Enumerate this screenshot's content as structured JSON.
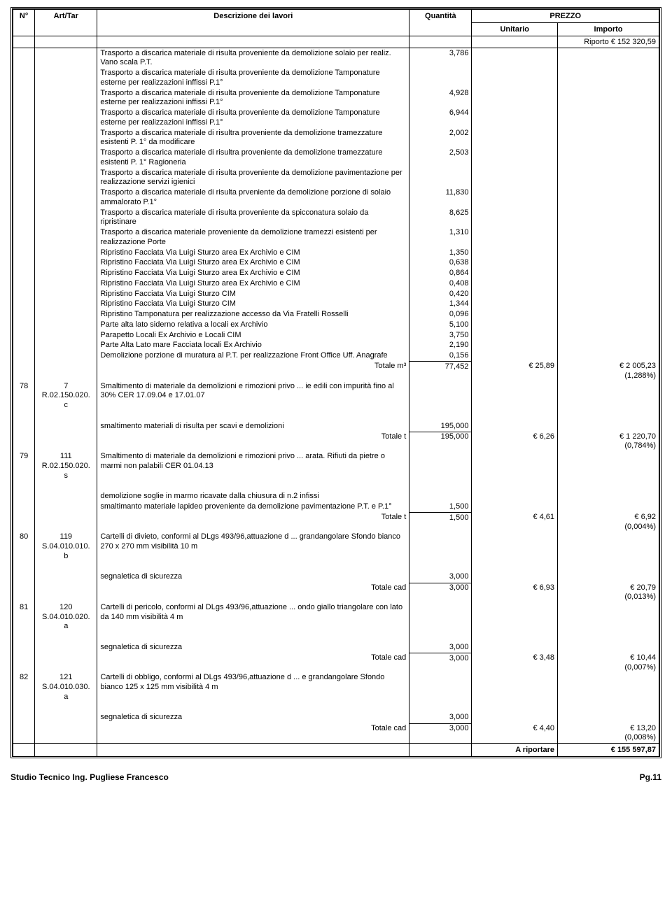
{
  "headers": {
    "n": "N°",
    "art": "Art/Tar",
    "desc": "Descrizione dei lavori",
    "qty": "Quantità",
    "prezzo": "PREZZO",
    "unit": "Unitario",
    "imp": "Importo"
  },
  "riporto": {
    "label": "Riporto",
    "value": "€ 152 320,59"
  },
  "rows": [
    {
      "desc": "Trasporto a discarica materiale di risulta proveniente da demolizione solaio per realiz. Vano scala P.T.",
      "qty": "3,786"
    },
    {
      "desc": "Trasporto a discarica materiale di risulta proveniente da demolizione Tamponature esterne per realizzazioni inffissi P.1°"
    },
    {
      "desc": "Trasporto a discarica materiale di risulta proveniente da demolizione Tamponature esterne per realizzazioni inffissi P.1°",
      "qty": "4,928"
    },
    {
      "desc": "Trasporto a discarica materiale di risulta proveniente da demolizione Tamponature esterne per realizzazioni inffissi P.1°",
      "qty": "6,944"
    },
    {
      "desc": "Trasporto a discarica materiale di risultra proveniente da demolizione tramezzature esistenti P. 1° da modificare",
      "qty": "2,002"
    },
    {
      "desc": "Trasporto a discarica materiale di risultra proveniente da demolizione tramezzature esistenti P. 1° Ragioneria",
      "qty": "2,503"
    },
    {
      "desc": "Trasporto a discarica materiale di risulta proveniente da demolizione pavimentazione per realizzazione servizi igienici"
    },
    {
      "desc": "Trasporto a discarica materiale di risulta prveniente da demolizione porzione di solaio ammalorato P.1°",
      "qty": "11,830"
    },
    {
      "desc": "Trasporto a discarica materiale di risulta proveniente da spicconatura solaio da ripristinare",
      "qty": "8,625"
    },
    {
      "desc": "Trasporto a discarica materiale proveniente da demolizione tramezzi esistenti per realizzazione Porte",
      "qty": "1,310"
    },
    {
      "desc": "Ripristino Facciata Via Luigi Sturzo area Ex Archivio e CIM",
      "qty": "1,350"
    },
    {
      "desc": "Ripristino Facciata Via Luigi Sturzo area Ex Archivio e CIM",
      "qty": "0,638"
    },
    {
      "desc": "Ripristino Facciata Via Luigi Sturzo area Ex Archivio e CIM",
      "qty": "0,864"
    },
    {
      "desc": "Ripristino Facciata Via Luigi Sturzo area Ex Archivio e CIM",
      "qty": "0,408"
    },
    {
      "desc": "Ripristino Facciata Via Luigi Sturzo CIM",
      "qty": "0,420"
    },
    {
      "desc": "Ripristino Facciata Via Luigi Sturzo CIM",
      "qty": "1,344"
    },
    {
      "desc": "Ripristino Tamponatura per realizzazione accesso da Via Fratelli Rosselli",
      "qty": "0,096"
    },
    {
      "desc": "Parte alta lato siderno relativa a locali ex Archivio",
      "qty": "5,100"
    },
    {
      "desc": "Parapetto Locali Ex Archivio e Locali CIM",
      "qty": "3,750"
    },
    {
      "desc": "Parte Alta Lato mare Facciata locali Ex Archivio",
      "qty": "2,190"
    },
    {
      "desc": "Demolizione porzione di muratura al P.T. per realizzazione Front Office Uff. Anagrafe",
      "qty": "0,156"
    }
  ],
  "totale_m3": {
    "label": "Totale m³",
    "qty": "77,452",
    "unit": "€ 25,89",
    "imp": "€ 2 005,23",
    "pct": "(1,288%)"
  },
  "items": [
    {
      "n": "78",
      "art_top": "7",
      "art_code": "R.02.150.020.",
      "art_suf": "c",
      "title": "Smaltimento di materiale da demolizioni e rimozioni privo ... ie edili con impurità  fino al 30% CER 17.09.04 e 17.01.07",
      "lines": [
        {
          "desc": "smaltimento materiali di risulta per scavi e demolizioni",
          "qty": "195,000"
        }
      ],
      "totale": {
        "label": "Totale t",
        "qty": "195,000",
        "unit": "€ 6,26",
        "imp": "€ 1 220,70",
        "pct": "(0,784%)"
      }
    },
    {
      "n": "79",
      "art_top": "111",
      "art_code": "R.02.150.020.",
      "art_suf": "s",
      "title": "Smaltimento di materiale da demolizioni e rimozioni privo ... arata. Rifiuti da pietre o marmi non palabili CER 01.04.13",
      "lines": [
        {
          "desc": "demolizione soglie in marmo ricavate dalla chiusura di n.2 infissi"
        },
        {
          "desc": "smaltimanto materiale lapideo proveniente da demolizione pavimentazione P.T. e P.1°",
          "qty": "1,500"
        }
      ],
      "totale": {
        "label": "Totale t",
        "qty": "1,500",
        "unit": "€ 4,61",
        "imp": "€ 6,92",
        "pct": "(0,004%)"
      }
    },
    {
      "n": "80",
      "art_top": "119",
      "art_code": "S.04.010.010.",
      "art_suf": "b",
      "title": "Cartelli di divieto, conformi al DLgs 493/96,attuazione d ... grandangolare Sfondo bianco 270 x 270 mm visibilità  10 m",
      "lines": [
        {
          "desc": "segnaletica di sicurezza",
          "qty": "3,000"
        }
      ],
      "totale": {
        "label": "Totale cad",
        "qty": "3,000",
        "unit": "€ 6,93",
        "imp": "€ 20,79",
        "pct": "(0,013%)"
      }
    },
    {
      "n": "81",
      "art_top": "120",
      "art_code": "S.04.010.020.",
      "art_suf": "a",
      "title": "Cartelli di pericolo, conformi al DLgs 493/96,attuazione  ... ondo giallo triangolare con lato da 140 mm visibilità  4 m",
      "lines": [
        {
          "desc": "segnaletica di sicurezza",
          "qty": "3,000"
        }
      ],
      "totale": {
        "label": "Totale cad",
        "qty": "3,000",
        "unit": "€ 3,48",
        "imp": "€ 10,44",
        "pct": "(0,007%)"
      }
    },
    {
      "n": "82",
      "art_top": "121",
      "art_code": "S.04.010.030.",
      "art_suf": "a",
      "title": "Cartelli di obbligo, conformi al DLgs 493/96,attuazione d ... e grandangolare Sfondo bianco 125 x 125 mm visibilità  4 m",
      "lines": [
        {
          "desc": "segnaletica di sicurezza",
          "qty": "3,000"
        }
      ],
      "totale": {
        "label": "Totale cad",
        "qty": "3,000",
        "unit": "€ 4,40",
        "imp": "€ 13,20",
        "pct": "(0,008%)"
      }
    }
  ],
  "ariportare": {
    "label": "A riportare",
    "value": "€ 155 597,87"
  },
  "footer": {
    "left": "Studio Tecnico Ing. Pugliese Francesco",
    "right": "Pg.11"
  }
}
